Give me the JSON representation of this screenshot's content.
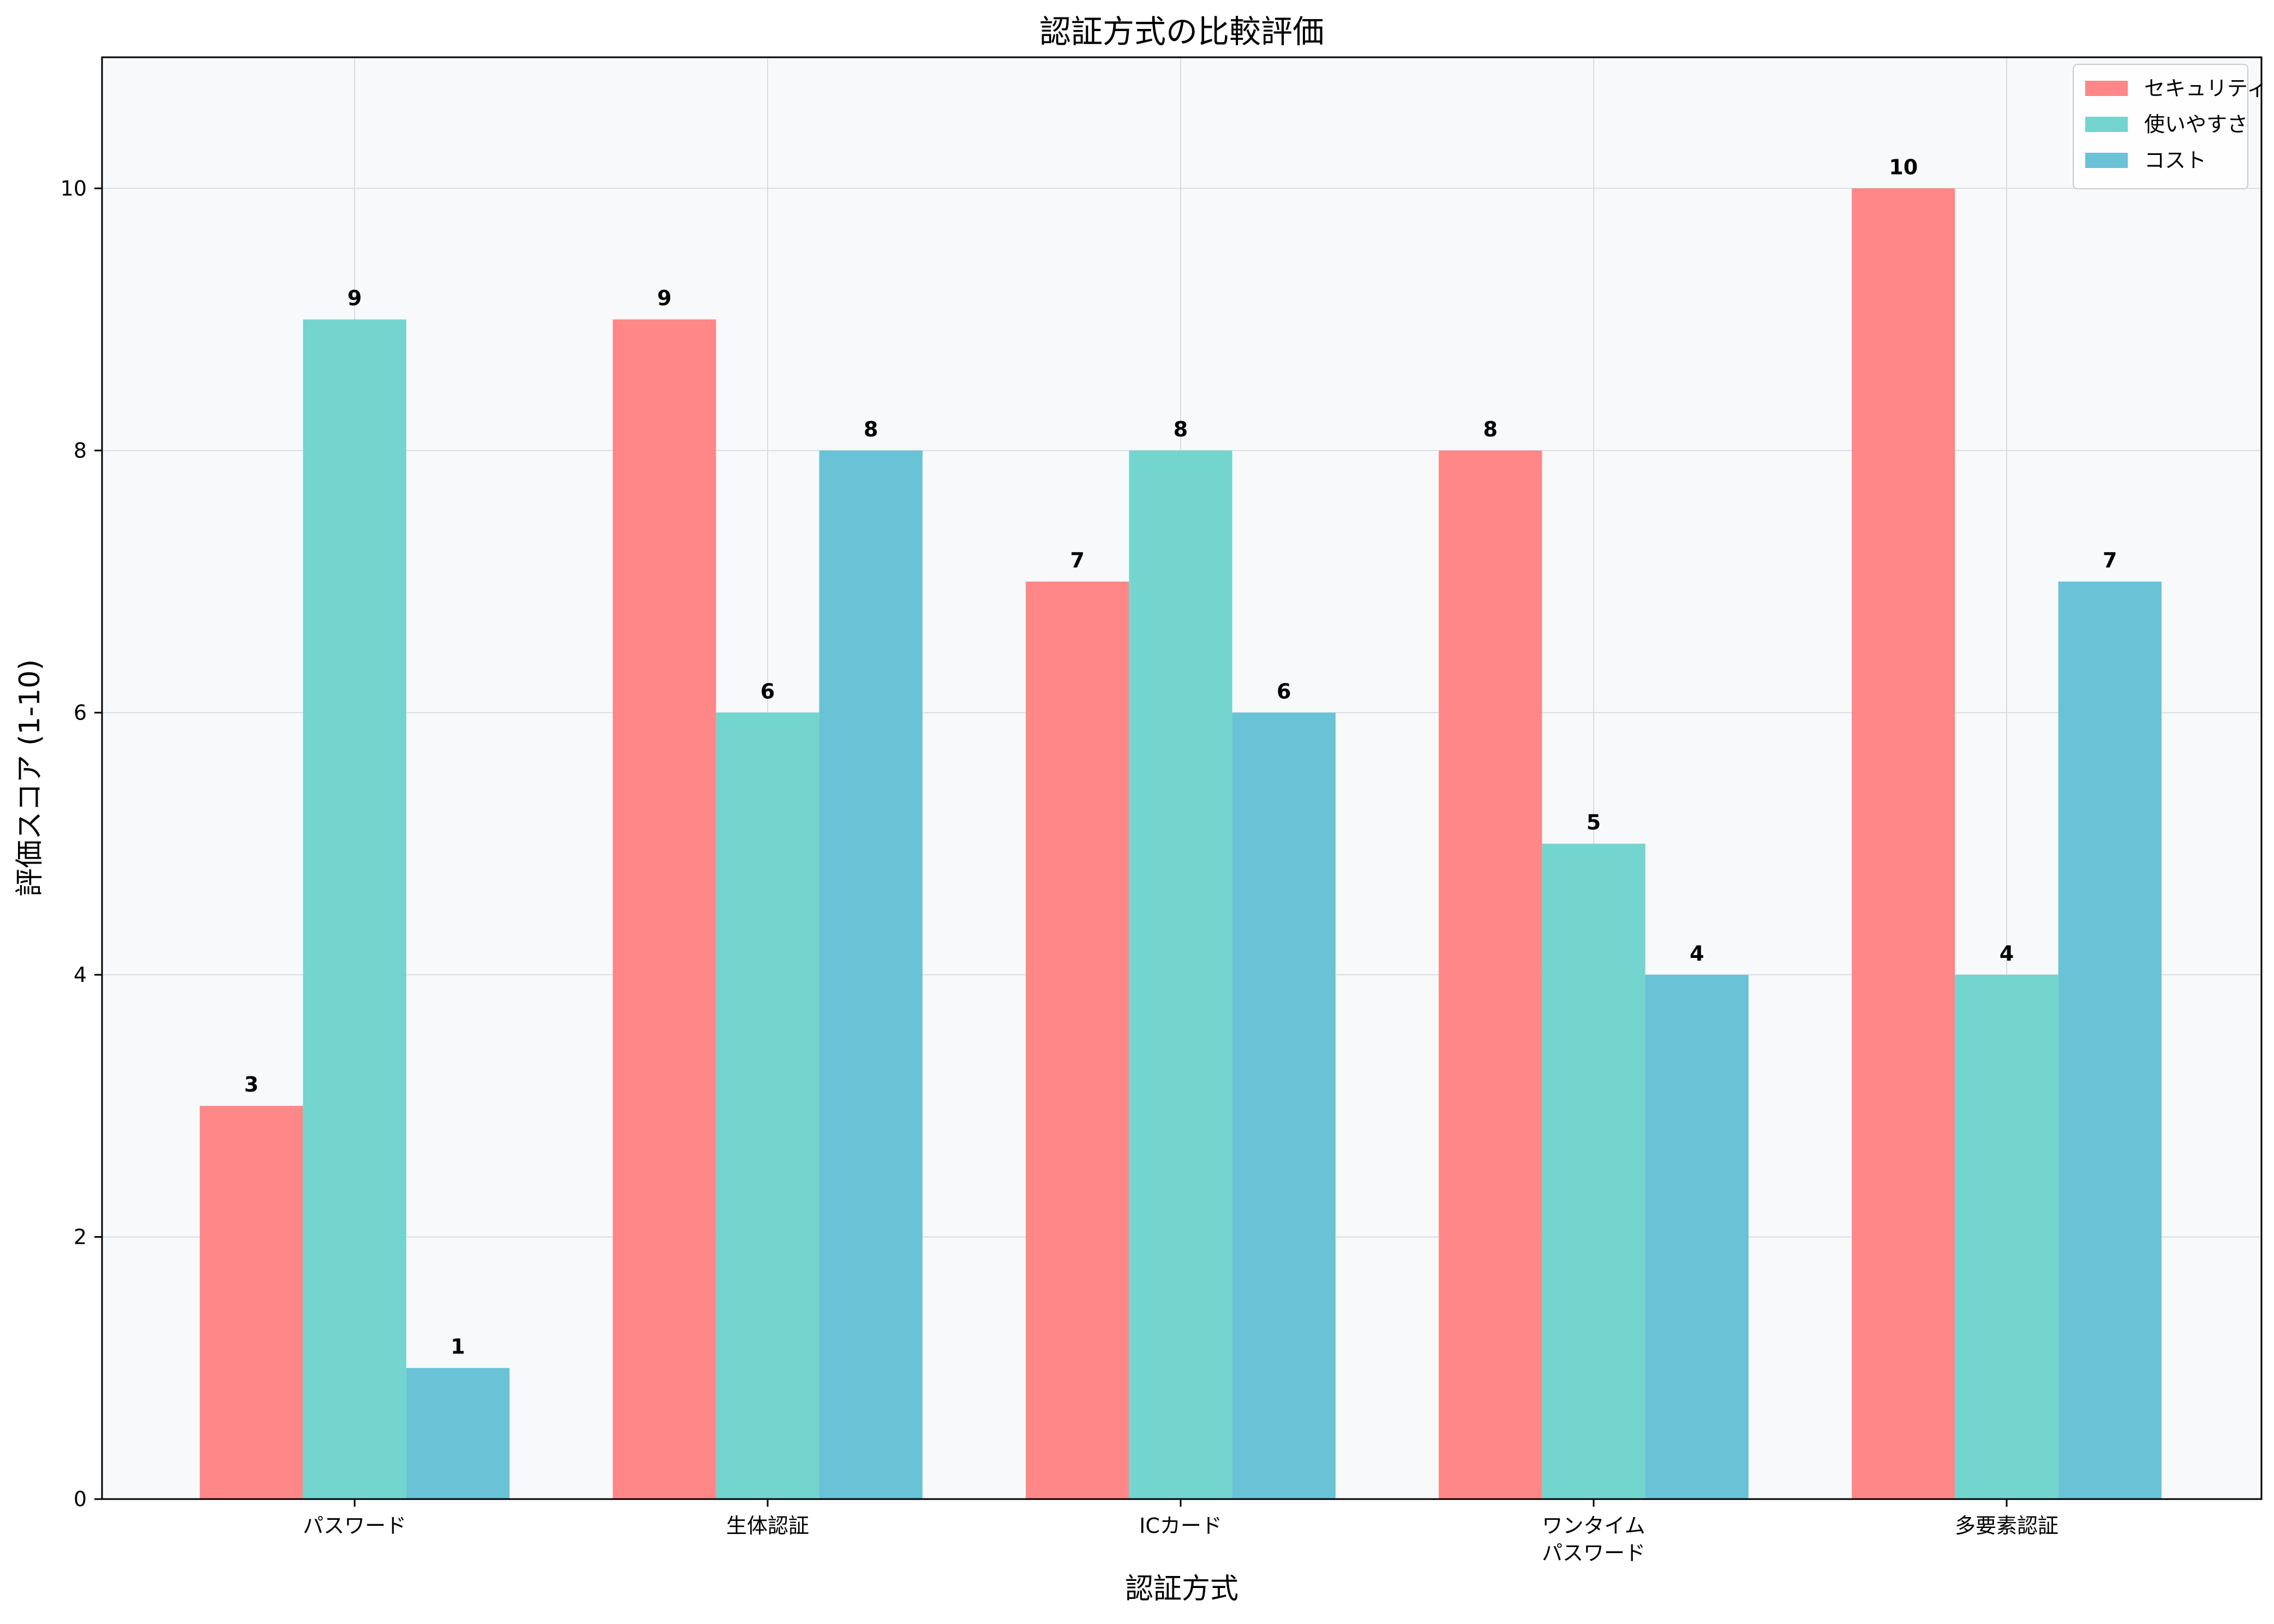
{
  "chart_data": {
    "type": "bar",
    "title": "認証方式の比較評価",
    "xlabel": "認証方式",
    "ylabel": "評価スコア (1-10)",
    "categories": [
      [
        "パスワード"
      ],
      [
        "生体認証"
      ],
      [
        "ICカード"
      ],
      [
        "ワンタイム",
        "パスワード"
      ],
      [
        "多要素認証"
      ]
    ],
    "series": [
      {
        "name": "セキュリティ",
        "color": "#FF8787",
        "values": [
          3,
          9,
          7,
          8,
          10
        ]
      },
      {
        "name": "使いやすさ",
        "color": "#74D4CE",
        "values": [
          9,
          6,
          8,
          5,
          4
        ]
      },
      {
        "name": "コスト",
        "color": "#69C2D6",
        "values": [
          1,
          8,
          6,
          4,
          7
        ]
      }
    ],
    "ylim": [
      0,
      11
    ],
    "yticks": [
      0,
      2,
      4,
      6,
      8,
      10
    ],
    "grid": true,
    "legend_position": "top-right",
    "plot_background": "#F7F9FB"
  }
}
